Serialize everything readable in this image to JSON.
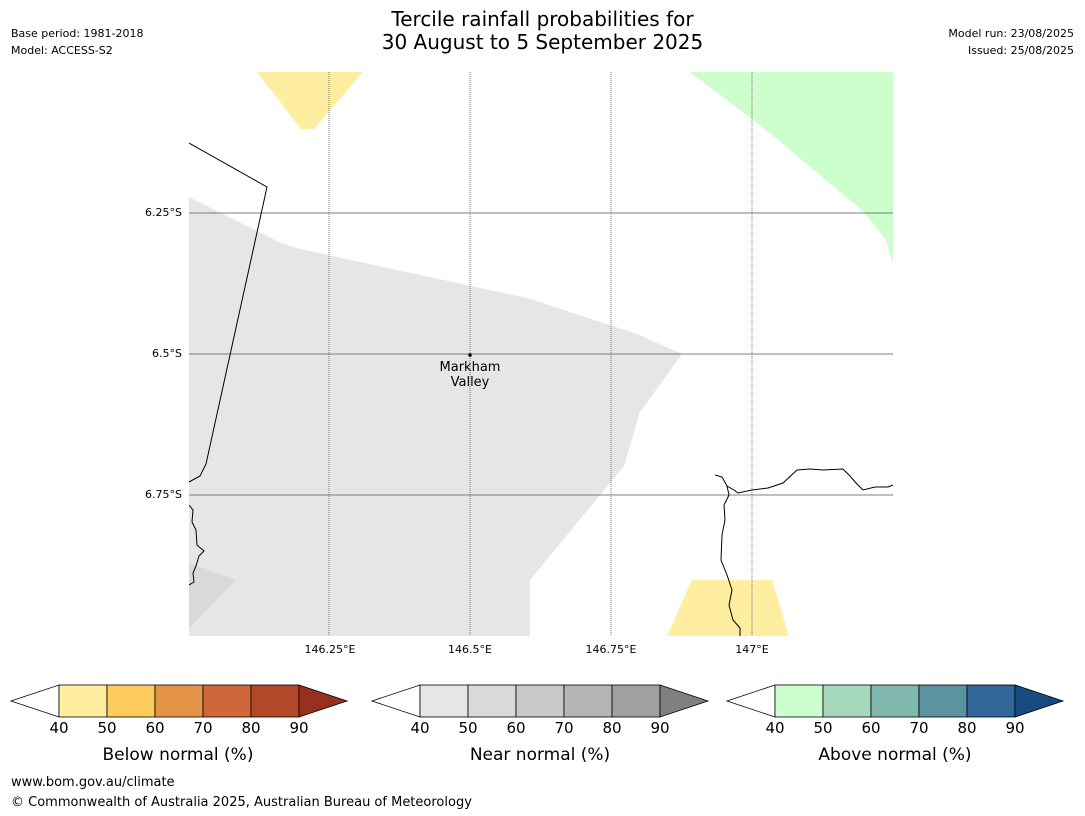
{
  "header": {
    "title_line1": "Tercile rainfall probabilities for",
    "title_line2": "30 August to 5 September 2025",
    "base_period": "Base period: 1981-2018",
    "model": "Model: ACCESS-S2",
    "model_run": "Model run: 23/08/2025",
    "issued": "Issued: 25/08/2025"
  },
  "map": {
    "lat_labels": [
      "6.25°S",
      "6.5°S",
      "6.75°S"
    ],
    "lon_labels": [
      "146.25°E",
      "146.5°E",
      "146.75°E",
      "147°E"
    ],
    "location": {
      "name_line1": "Markham",
      "name_line2": "Valley",
      "lat": -6.5,
      "lon": 146.5
    },
    "colors": {
      "below_40": "#ffeda0",
      "near_40": "#e6e6e6",
      "near_50": "#d9d9d9",
      "above_40": "#ccffcc"
    }
  },
  "colorbars": [
    {
      "title": "Below normal (%)",
      "ticks": [
        "40",
        "50",
        "60",
        "70",
        "80",
        "90"
      ],
      "colors": [
        "#ffeda0",
        "#fecc5c",
        "#e49446",
        "#d0673a",
        "#b24828",
        "#963020"
      ]
    },
    {
      "title": "Near normal (%)",
      "ticks": [
        "40",
        "50",
        "60",
        "70",
        "80",
        "90"
      ],
      "colors": [
        "#e6e6e6",
        "#d9d9d9",
        "#c8c8c8",
        "#b4b4b4",
        "#a0a0a0",
        "#808080"
      ]
    },
    {
      "title": "Above normal (%)",
      "ticks": [
        "40",
        "50",
        "60",
        "70",
        "80",
        "90"
      ],
      "colors": [
        "#ccffcc",
        "#a6d8bb",
        "#80b8ae",
        "#5b94a0",
        "#306698",
        "#174a80"
      ]
    }
  ],
  "footer": {
    "url": "www.bom.gov.au/climate",
    "copyright": "© Commonwealth of Australia 2025, Australian Bureau of Meteorology"
  }
}
